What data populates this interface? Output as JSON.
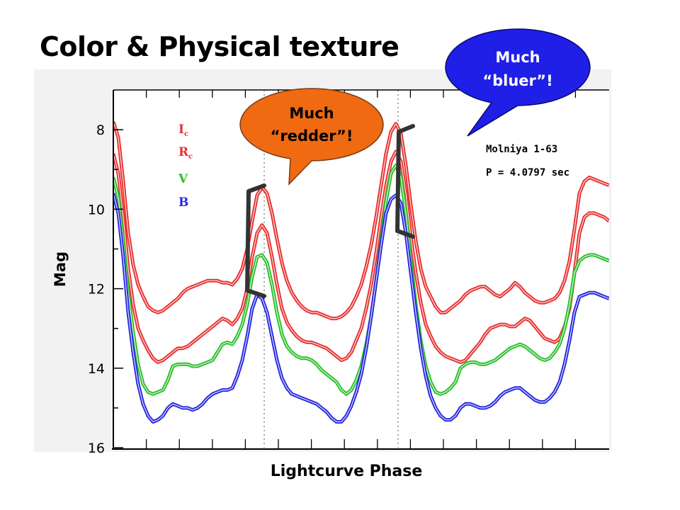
{
  "slide": {
    "title": "Color & Physical texture"
  },
  "chart_data": {
    "type": "line",
    "xlabel": "Lightcurve Phase",
    "ylabel": "Mag",
    "ylim": [
      16,
      7
    ],
    "yticks": [
      8,
      10,
      12,
      14,
      16
    ],
    "y_inverted": true,
    "x_tick_labels": false,
    "grid": false,
    "legend_position": "top-left",
    "x": [
      0.0,
      0.01,
      0.02,
      0.03,
      0.04,
      0.05,
      0.06,
      0.07,
      0.08,
      0.09,
      0.1,
      0.11,
      0.12,
      0.13,
      0.14,
      0.15,
      0.16,
      0.17,
      0.18,
      0.19,
      0.2,
      0.21,
      0.22,
      0.23,
      0.24,
      0.25,
      0.26,
      0.27,
      0.28,
      0.29,
      0.3,
      0.31,
      0.32,
      0.33,
      0.34,
      0.35,
      0.36,
      0.37,
      0.38,
      0.39,
      0.4,
      0.41,
      0.42,
      0.43,
      0.44,
      0.45,
      0.46,
      0.47,
      0.48,
      0.49,
      0.5,
      0.51,
      0.52,
      0.53,
      0.54,
      0.55,
      0.56,
      0.57,
      0.58,
      0.59,
      0.6,
      0.61,
      0.62,
      0.63,
      0.64,
      0.65,
      0.66,
      0.67,
      0.68,
      0.69,
      0.7,
      0.71,
      0.72,
      0.73,
      0.74,
      0.75,
      0.76,
      0.77,
      0.78,
      0.79,
      0.8,
      0.81,
      0.82,
      0.83,
      0.84,
      0.85,
      0.86,
      0.87,
      0.88,
      0.89,
      0.9,
      0.91,
      0.92,
      0.93,
      0.94,
      0.95,
      0.96,
      0.97,
      0.98,
      0.99,
      1.0
    ],
    "series": [
      {
        "name": "Ic",
        "color": "#e83030",
        "values": [
          7.8,
          8.2,
          9.3,
          10.6,
          11.4,
          11.9,
          12.2,
          12.45,
          12.55,
          12.6,
          12.55,
          12.45,
          12.35,
          12.25,
          12.1,
          12.0,
          11.95,
          11.9,
          11.85,
          11.8,
          11.8,
          11.8,
          11.85,
          11.85,
          11.9,
          11.75,
          11.5,
          11.0,
          10.3,
          9.65,
          9.45,
          9.6,
          10.1,
          10.75,
          11.35,
          11.8,
          12.1,
          12.3,
          12.45,
          12.55,
          12.6,
          12.6,
          12.65,
          12.7,
          12.75,
          12.75,
          12.7,
          12.6,
          12.45,
          12.2,
          11.9,
          11.45,
          10.9,
          10.2,
          9.4,
          8.6,
          8.05,
          7.85,
          8.1,
          8.9,
          9.9,
          10.8,
          11.5,
          11.95,
          12.2,
          12.45,
          12.6,
          12.6,
          12.5,
          12.4,
          12.3,
          12.15,
          12.05,
          12.0,
          11.95,
          11.95,
          12.05,
          12.15,
          12.2,
          12.1,
          12.0,
          11.85,
          11.95,
          12.1,
          12.2,
          12.3,
          12.35,
          12.35,
          12.3,
          12.25,
          12.1,
          11.8,
          11.3,
          10.5,
          9.6,
          9.3,
          9.2,
          9.25,
          9.3,
          9.35,
          9.4
        ]
      },
      {
        "name": "Rc",
        "color": "#e83030",
        "values": [
          8.6,
          9.1,
          10.2,
          11.5,
          12.4,
          13.0,
          13.3,
          13.55,
          13.75,
          13.85,
          13.8,
          13.7,
          13.6,
          13.5,
          13.5,
          13.45,
          13.35,
          13.25,
          13.15,
          13.05,
          12.95,
          12.85,
          12.75,
          12.8,
          12.9,
          12.75,
          12.5,
          12.0,
          11.2,
          10.6,
          10.4,
          10.6,
          11.2,
          11.9,
          12.5,
          12.85,
          13.05,
          13.2,
          13.3,
          13.35,
          13.35,
          13.4,
          13.45,
          13.5,
          13.6,
          13.7,
          13.8,
          13.75,
          13.6,
          13.3,
          13.0,
          12.5,
          11.9,
          11.1,
          10.2,
          9.4,
          8.8,
          8.55,
          8.8,
          9.6,
          10.7,
          11.6,
          12.35,
          12.9,
          13.2,
          13.45,
          13.6,
          13.7,
          13.75,
          13.8,
          13.85,
          13.8,
          13.65,
          13.5,
          13.35,
          13.15,
          13.0,
          12.95,
          12.9,
          12.9,
          12.95,
          12.95,
          12.85,
          12.75,
          12.8,
          12.95,
          13.1,
          13.25,
          13.3,
          13.35,
          13.25,
          12.95,
          12.5,
          11.6,
          10.6,
          10.2,
          10.1,
          10.1,
          10.15,
          10.2,
          10.3
        ]
      },
      {
        "name": "V",
        "color": "#28c028",
        "values": [
          9.2,
          9.7,
          10.8,
          12.1,
          13.1,
          13.9,
          14.4,
          14.6,
          14.65,
          14.6,
          14.55,
          14.3,
          13.95,
          13.9,
          13.9,
          13.9,
          13.95,
          13.95,
          13.9,
          13.85,
          13.8,
          13.6,
          13.4,
          13.35,
          13.4,
          13.2,
          12.9,
          12.4,
          11.7,
          11.2,
          11.15,
          11.35,
          11.9,
          12.6,
          13.15,
          13.45,
          13.6,
          13.7,
          13.75,
          13.75,
          13.8,
          13.9,
          14.05,
          14.15,
          14.25,
          14.35,
          14.55,
          14.65,
          14.55,
          14.3,
          13.95,
          13.4,
          12.7,
          11.8,
          10.8,
          9.8,
          9.1,
          8.9,
          9.2,
          10.1,
          11.3,
          12.4,
          13.3,
          13.95,
          14.35,
          14.6,
          14.65,
          14.6,
          14.5,
          14.35,
          14.0,
          13.9,
          13.85,
          13.85,
          13.9,
          13.9,
          13.85,
          13.8,
          13.7,
          13.6,
          13.5,
          13.45,
          13.4,
          13.45,
          13.55,
          13.65,
          13.75,
          13.8,
          13.75,
          13.6,
          13.4,
          13.0,
          12.4,
          11.6,
          11.3,
          11.2,
          11.15,
          11.15,
          11.2,
          11.25,
          11.3
        ]
      },
      {
        "name": "B",
        "color": "#2828e0",
        "values": [
          9.6,
          10.1,
          11.2,
          12.6,
          13.6,
          14.4,
          14.9,
          15.2,
          15.35,
          15.3,
          15.2,
          15.0,
          14.9,
          14.95,
          15.0,
          15.0,
          15.05,
          15.0,
          14.9,
          14.75,
          14.65,
          14.6,
          14.55,
          14.55,
          14.5,
          14.2,
          13.8,
          13.2,
          12.5,
          12.15,
          12.25,
          12.6,
          13.2,
          13.8,
          14.25,
          14.5,
          14.65,
          14.7,
          14.75,
          14.8,
          14.85,
          14.9,
          15.0,
          15.1,
          15.25,
          15.35,
          15.35,
          15.2,
          14.95,
          14.6,
          14.15,
          13.5,
          12.7,
          11.8,
          10.9,
          10.1,
          9.75,
          9.65,
          9.85,
          10.6,
          11.6,
          12.6,
          13.5,
          14.2,
          14.7,
          15.0,
          15.2,
          15.3,
          15.3,
          15.2,
          15.0,
          14.9,
          14.9,
          14.95,
          15.0,
          15.0,
          14.95,
          14.85,
          14.7,
          14.6,
          14.55,
          14.5,
          14.5,
          14.6,
          14.7,
          14.8,
          14.85,
          14.85,
          14.75,
          14.6,
          14.35,
          13.9,
          13.3,
          12.6,
          12.2,
          12.15,
          12.1,
          12.1,
          12.15,
          12.2,
          12.25
        ]
      }
    ],
    "legend": [
      {
        "main": "I",
        "sub": "c",
        "color": "#e83030"
      },
      {
        "main": "R",
        "sub": "c",
        "color": "#e83030"
      },
      {
        "main": "V",
        "sub": "",
        "color": "#28c028"
      },
      {
        "main": "B",
        "sub": "",
        "color": "#2828e0"
      }
    ],
    "annotations": {
      "object": "Molniya 1-63",
      "period": "P = 4.0797 sec"
    }
  },
  "callouts": {
    "redder": {
      "line1": "Much",
      "line2": "“redder”!",
      "fill": "#f06a12",
      "text_color": "#000000"
    },
    "bluer": {
      "line1": "Much",
      "line2": "“bluer”!",
      "fill": "#1f1fe8",
      "text_color": "#ffffff"
    }
  }
}
